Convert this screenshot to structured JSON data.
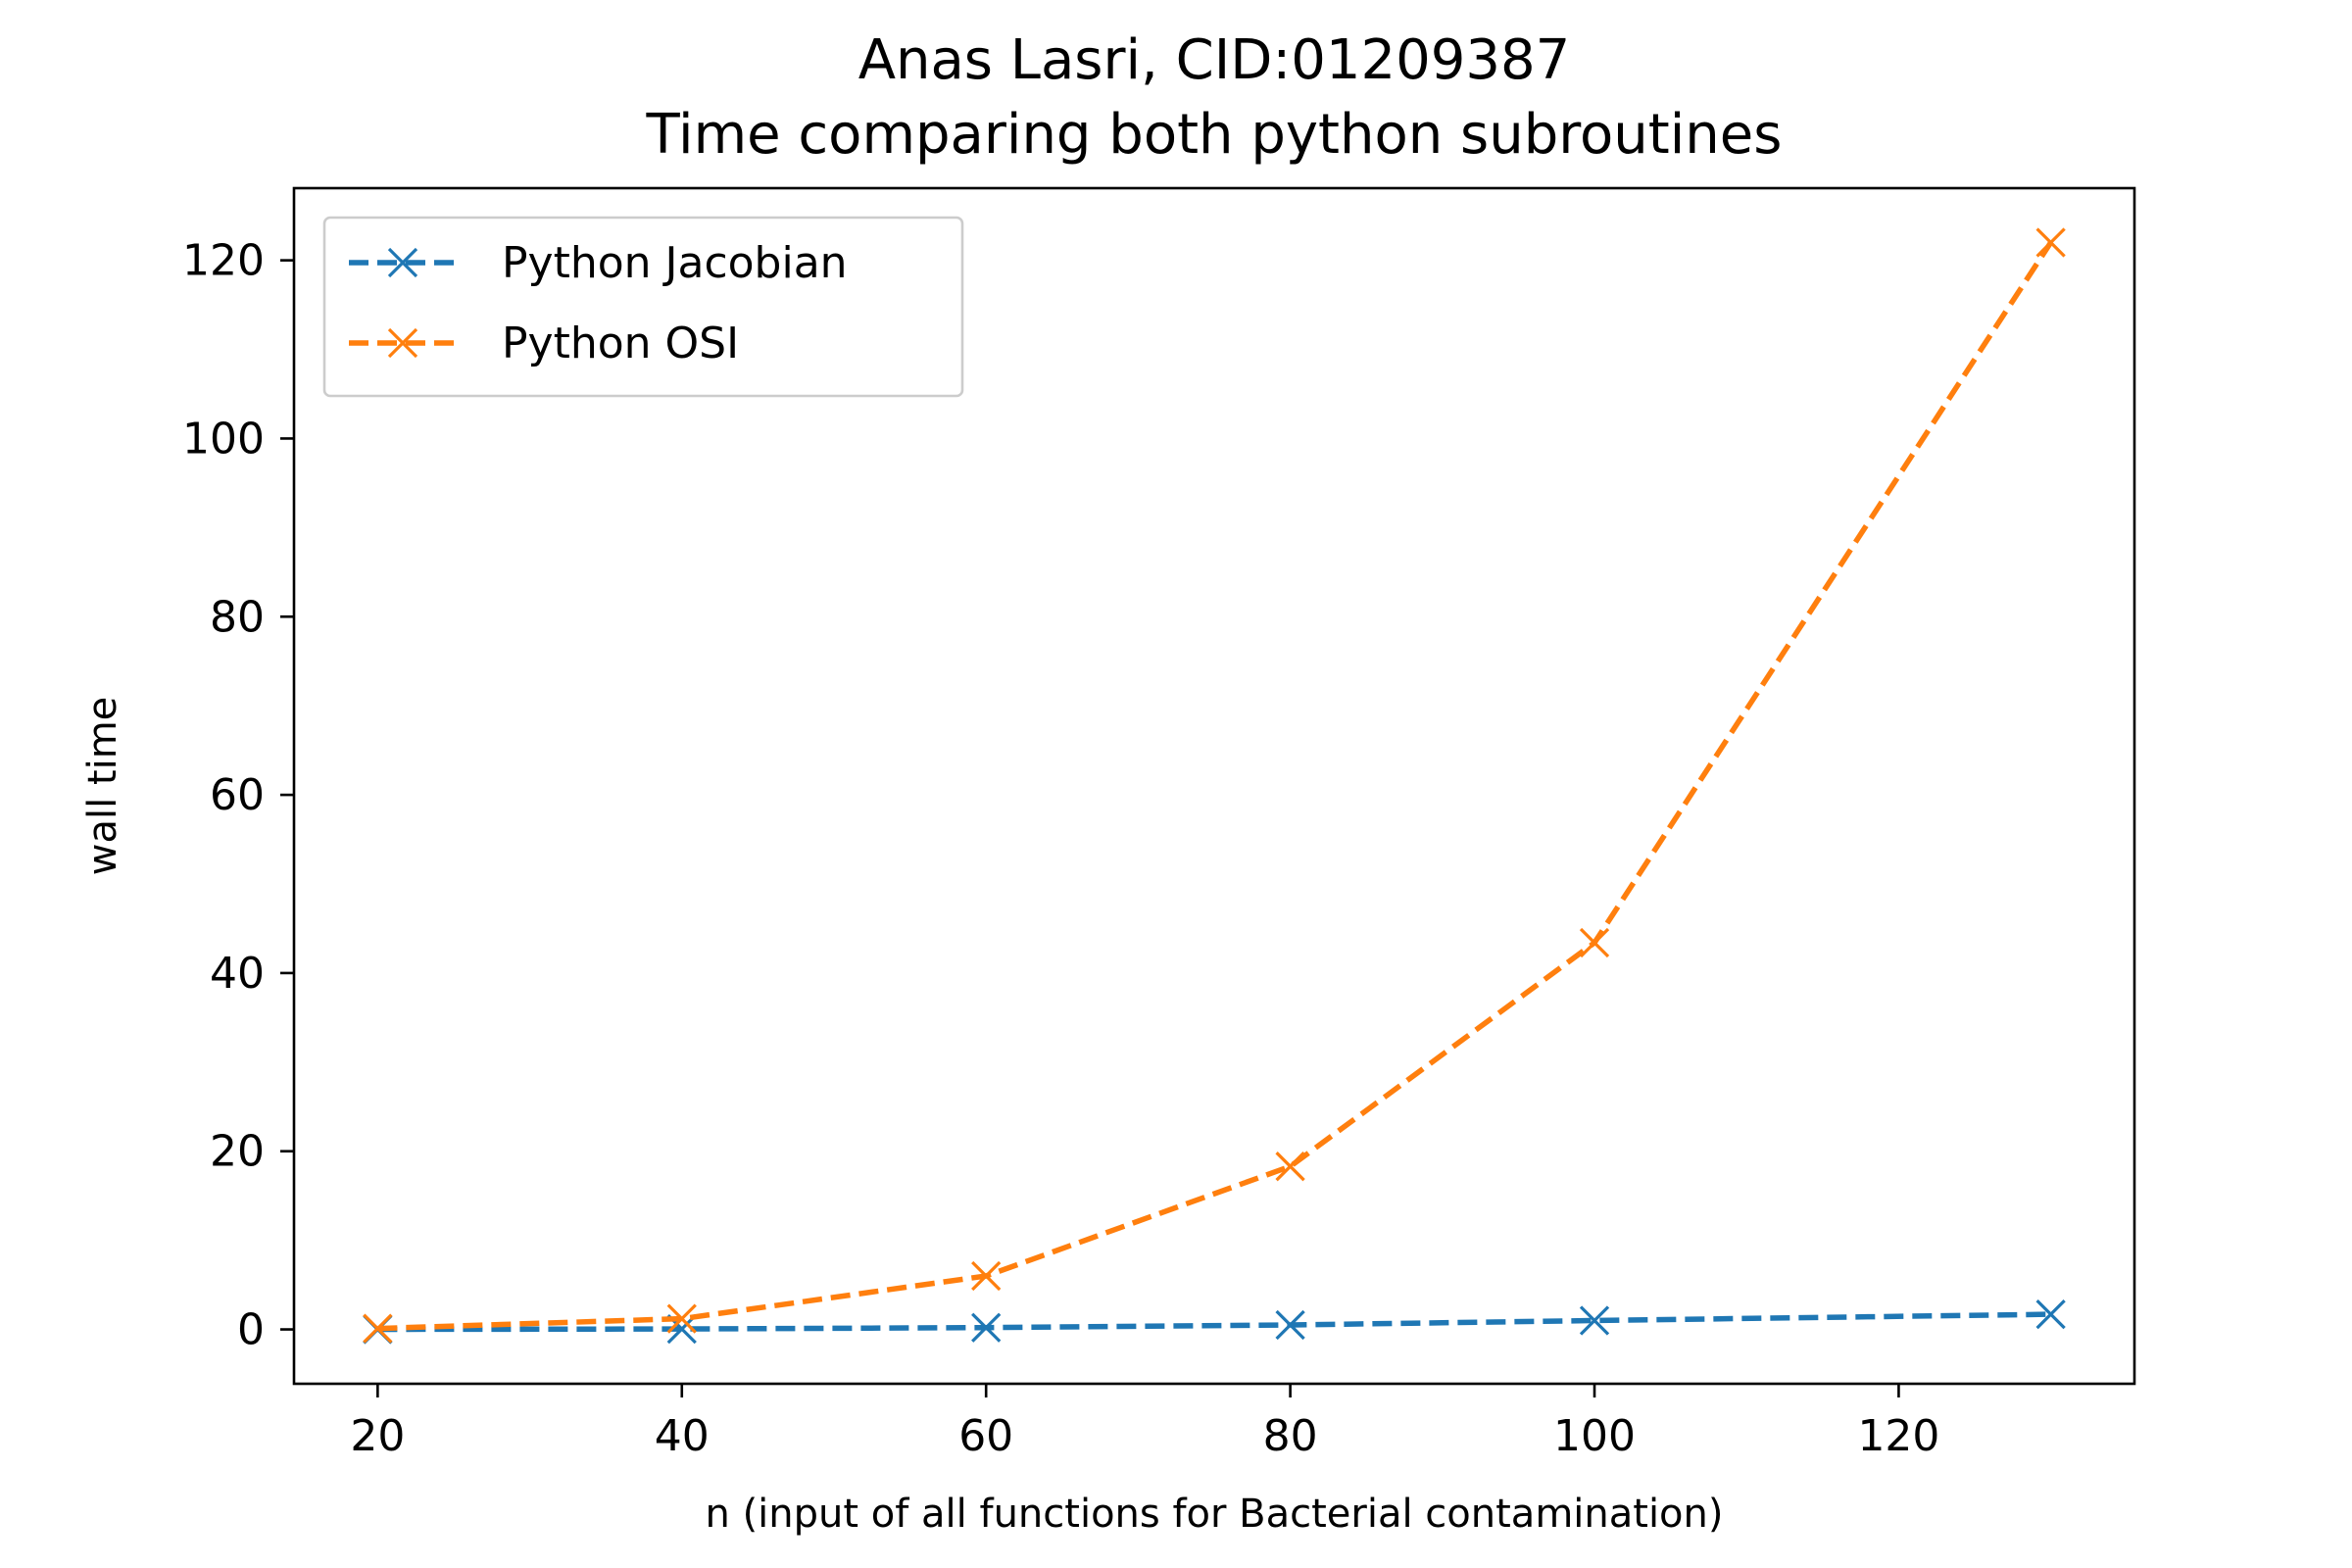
{
  "chart_data": {
    "type": "line",
    "title_lines": [
      "Anas Lasri, CID:01209387",
      "Time comparing both python subroutines"
    ],
    "xlabel": "n (input of all functions for Bacterial contamination)",
    "ylabel": "wall time",
    "xlim": [
      14.5,
      135.5
    ],
    "ylim": [
      -6.1,
      128.1
    ],
    "xticks": [
      20,
      40,
      60,
      80,
      100,
      120
    ],
    "yticks": [
      0,
      20,
      40,
      60,
      80,
      100,
      120
    ],
    "grid": false,
    "legend_position": "upper-left",
    "marker": "x",
    "line_style": "dashed",
    "series": [
      {
        "name": "Python Jacobian",
        "color": "#1f77b4",
        "x": [
          20,
          40,
          60,
          80,
          100,
          130
        ],
        "y": [
          0.0,
          0.05,
          0.2,
          0.5,
          1.0,
          1.7
        ]
      },
      {
        "name": "Python OSI",
        "color": "#ff7f0e",
        "x": [
          20,
          40,
          60,
          80,
          100,
          130
        ],
        "y": [
          0.1,
          1.2,
          6.0,
          18.3,
          43.4,
          122.0
        ]
      }
    ]
  }
}
